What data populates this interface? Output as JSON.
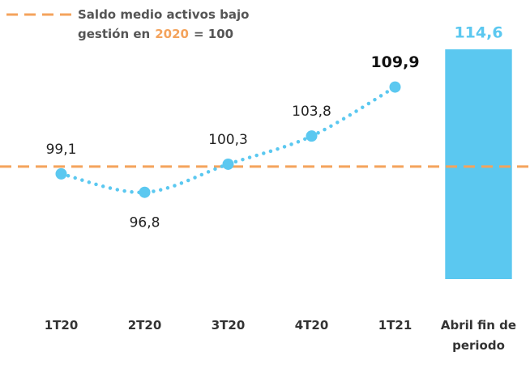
{
  "chart_data": {
    "type": "line",
    "categories": [
      "1T20",
      "2T20",
      "3T20",
      "4T20",
      "1T21",
      "Abril fin de periodo"
    ],
    "series": [
      {
        "type": "line",
        "color": "#5bc8f0",
        "values": [
          99.1,
          96.8,
          100.3,
          103.8,
          109.9,
          null
        ],
        "value_labels": [
          "99,1",
          "96,8",
          "100,3",
          "103,8",
          "109,9",
          null
        ]
      },
      {
        "type": "bar",
        "color": "#5bc8f0",
        "values": [
          null,
          null,
          null,
          null,
          null,
          114.6
        ],
        "value_labels": [
          null,
          null,
          null,
          null,
          null,
          "114,6"
        ]
      }
    ],
    "reference_line": {
      "value": 100,
      "color": "#f4a35c",
      "label": "Saldo medio activos bajo gestión en",
      "highlight": "2020",
      "label_end": "= 100"
    },
    "ylim": [
      86,
      116
    ]
  }
}
